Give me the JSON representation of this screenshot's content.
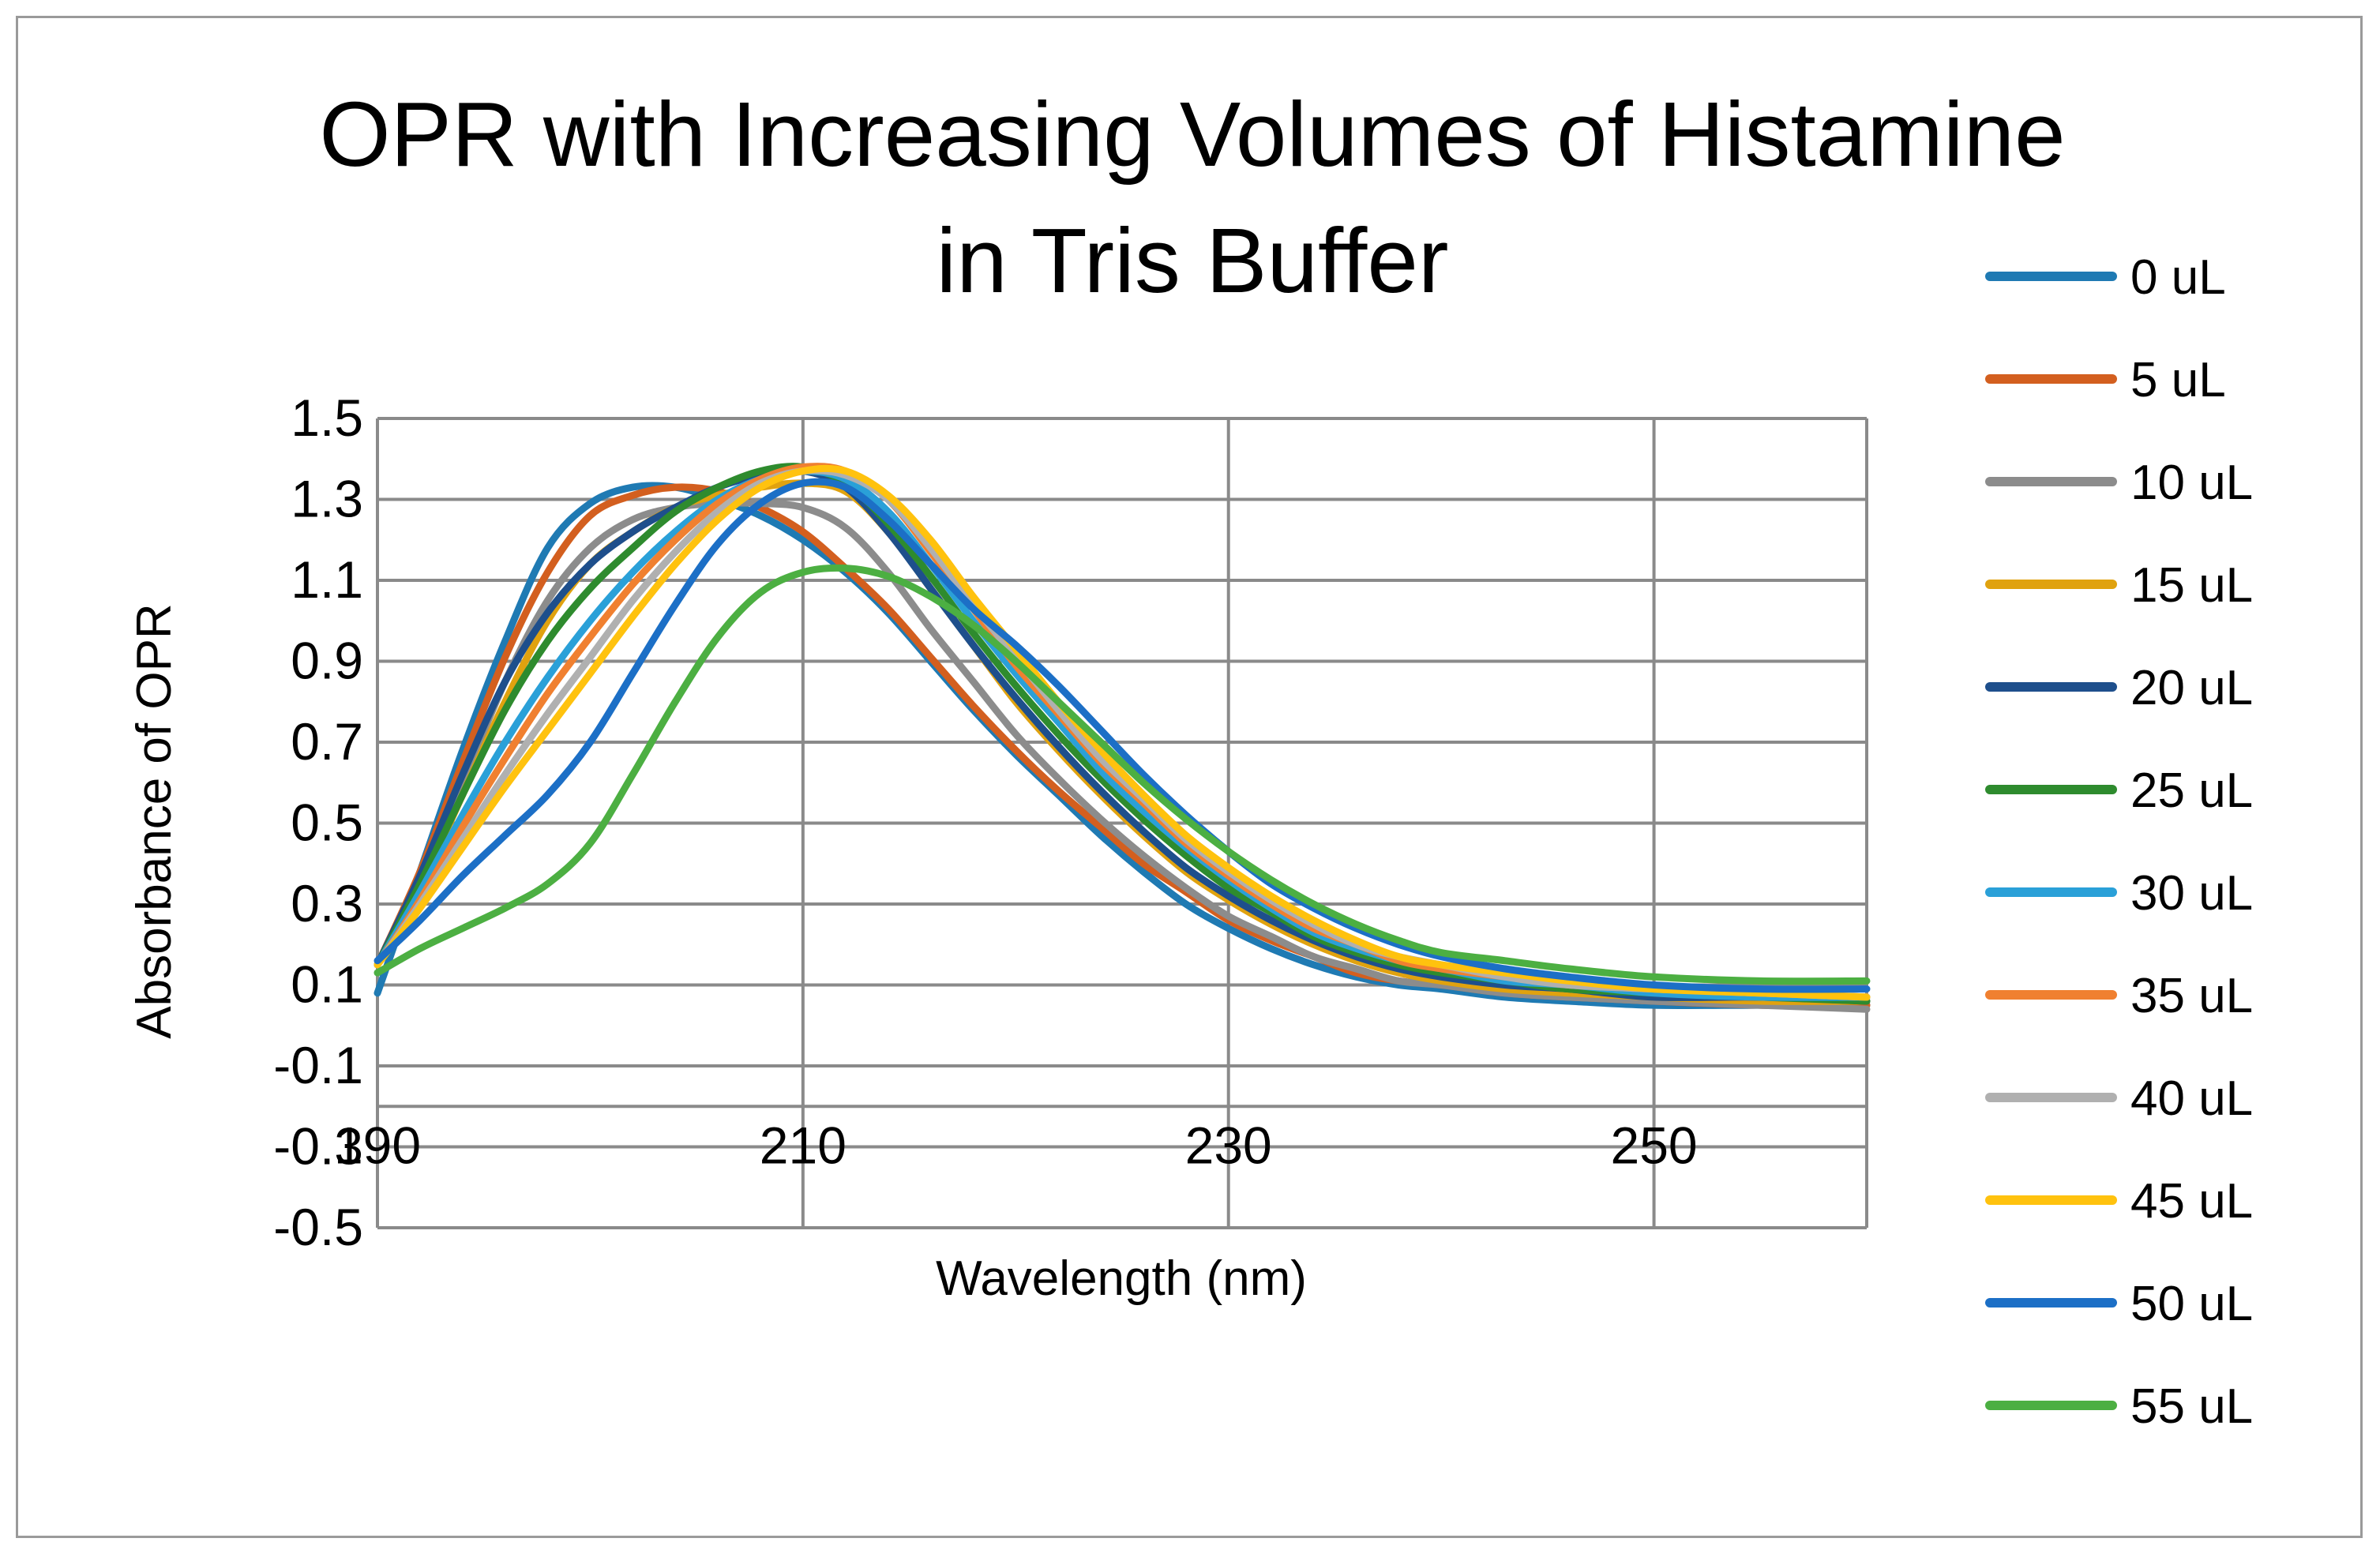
{
  "chart_data": {
    "type": "line",
    "title_lines": [
      "OPR with Increasing Volumes of Histamine",
      "in Tris Buffer"
    ],
    "xlabel": "Wavelength  (nm)",
    "ylabel": "Absorbance of OPR",
    "xlim": [
      190,
      260
    ],
    "ylim": [
      -0.5,
      1.5
    ],
    "x_ticks": [
      190,
      210,
      230,
      250
    ],
    "x_tick_labels": [
      "190",
      "210",
      "230",
      "250"
    ],
    "x_axis_crosses_y": -0.2,
    "y_ticks": [
      1.5,
      1.3,
      1.1,
      0.9,
      0.7,
      0.5,
      0.3,
      0.1,
      -0.1,
      -0.3,
      -0.5
    ],
    "y_tick_labels": [
      "1.5",
      "1.3",
      "1.1",
      "0.9",
      "0.7",
      "0.5",
      "0.3",
      "0.1",
      "-0.1",
      "-0.3",
      "-0.5"
    ],
    "grid": true,
    "legend_position": "right",
    "x": [
      190,
      192,
      194,
      196,
      198,
      200,
      202,
      204,
      206,
      208,
      210,
      212,
      214,
      216,
      218,
      220,
      222,
      224,
      226,
      228,
      230,
      232,
      234,
      236,
      238,
      240,
      243,
      246,
      250,
      255,
      260
    ],
    "series": [
      {
        "name": "0 uL",
        "color": "#1f7ab3",
        "values": [
          0.08,
          0.38,
          0.68,
          0.95,
          1.18,
          1.29,
          1.33,
          1.33,
          1.3,
          1.26,
          1.2,
          1.12,
          1.02,
          0.9,
          0.78,
          0.67,
          0.57,
          0.47,
          0.38,
          0.3,
          0.24,
          0.19,
          0.15,
          0.12,
          0.1,
          0.09,
          0.07,
          0.06,
          0.05,
          0.05,
          0.05
        ]
      },
      {
        "name": "5 uL",
        "color": "#d35f1f",
        "values": [
          0.15,
          0.38,
          0.65,
          0.91,
          1.12,
          1.26,
          1.31,
          1.33,
          1.32,
          1.28,
          1.22,
          1.13,
          1.03,
          0.91,
          0.79,
          0.68,
          0.58,
          0.49,
          0.4,
          0.33,
          0.26,
          0.21,
          0.17,
          0.13,
          0.11,
          0.1,
          0.08,
          0.07,
          0.06,
          0.05,
          0.05
        ]
      },
      {
        "name": "10 uL",
        "color": "#8c8c8c",
        "values": [
          0.15,
          0.36,
          0.6,
          0.85,
          1.05,
          1.18,
          1.25,
          1.28,
          1.29,
          1.29,
          1.28,
          1.23,
          1.12,
          0.98,
          0.85,
          0.72,
          0.61,
          0.51,
          0.42,
          0.34,
          0.27,
          0.22,
          0.17,
          0.14,
          0.11,
          0.1,
          0.08,
          0.07,
          0.06,
          0.05,
          0.04
        ]
      },
      {
        "name": "15 uL",
        "color": "#e0a20f",
        "values": [
          0.15,
          0.34,
          0.57,
          0.8,
          1.0,
          1.14,
          1.22,
          1.28,
          1.31,
          1.33,
          1.34,
          1.32,
          1.22,
          1.08,
          0.94,
          0.8,
          0.68,
          0.57,
          0.47,
          0.38,
          0.31,
          0.25,
          0.2,
          0.16,
          0.13,
          0.11,
          0.09,
          0.08,
          0.07,
          0.06,
          0.06
        ]
      },
      {
        "name": "20 uL",
        "color": "#1e4f8c",
        "values": [
          0.15,
          0.37,
          0.62,
          0.85,
          1.02,
          1.14,
          1.22,
          1.28,
          1.33,
          1.36,
          1.37,
          1.33,
          1.22,
          1.08,
          0.94,
          0.81,
          0.69,
          0.58,
          0.48,
          0.39,
          0.32,
          0.26,
          0.21,
          0.17,
          0.14,
          0.12,
          0.1,
          0.09,
          0.07,
          0.07,
          0.06
        ]
      },
      {
        "name": "25 uL",
        "color": "#2e8b2e",
        "values": [
          0.15,
          0.35,
          0.57,
          0.78,
          0.95,
          1.08,
          1.18,
          1.27,
          1.33,
          1.37,
          1.38,
          1.34,
          1.24,
          1.11,
          0.97,
          0.84,
          0.72,
          0.61,
          0.51,
          0.42,
          0.34,
          0.28,
          0.22,
          0.18,
          0.15,
          0.13,
          0.11,
          0.09,
          0.08,
          0.07,
          0.06
        ]
      },
      {
        "name": "30 uL",
        "color": "#2aa0d8",
        "values": [
          0.15,
          0.33,
          0.52,
          0.7,
          0.86,
          1.0,
          1.12,
          1.22,
          1.3,
          1.35,
          1.37,
          1.35,
          1.27,
          1.14,
          1.0,
          0.87,
          0.75,
          0.63,
          0.53,
          0.44,
          0.36,
          0.29,
          0.23,
          0.19,
          0.16,
          0.14,
          0.11,
          0.1,
          0.08,
          0.07,
          0.07
        ]
      },
      {
        "name": "35 uL",
        "color": "#f08030",
        "values": [
          0.15,
          0.31,
          0.49,
          0.66,
          0.82,
          0.96,
          1.09,
          1.2,
          1.29,
          1.35,
          1.38,
          1.37,
          1.3,
          1.17,
          1.03,
          0.89,
          0.77,
          0.65,
          0.55,
          0.45,
          0.37,
          0.3,
          0.24,
          0.2,
          0.16,
          0.14,
          0.12,
          0.1,
          0.09,
          0.08,
          0.07
        ]
      },
      {
        "name": "40  uL",
        "color": "#b0b0b0",
        "values": [
          0.15,
          0.3,
          0.46,
          0.62,
          0.77,
          0.91,
          1.05,
          1.17,
          1.27,
          1.34,
          1.37,
          1.36,
          1.3,
          1.18,
          1.04,
          0.91,
          0.78,
          0.66,
          0.56,
          0.46,
          0.38,
          0.31,
          0.25,
          0.2,
          0.17,
          0.15,
          0.12,
          0.1,
          0.09,
          0.08,
          0.07
        ]
      },
      {
        "name": "45 uL",
        "color": "#ffc20e",
        "values": [
          0.15,
          0.29,
          0.44,
          0.59,
          0.73,
          0.87,
          1.01,
          1.14,
          1.25,
          1.33,
          1.37,
          1.37,
          1.31,
          1.2,
          1.06,
          0.93,
          0.8,
          0.68,
          0.57,
          0.47,
          0.39,
          0.32,
          0.26,
          0.21,
          0.17,
          0.15,
          0.13,
          0.11,
          0.09,
          0.08,
          0.07
        ]
      },
      {
        "name": "50 uL",
        "color": "#1c6fc6",
        "values": [
          0.16,
          0.26,
          0.37,
          0.47,
          0.57,
          0.7,
          0.87,
          1.04,
          1.19,
          1.29,
          1.34,
          1.33,
          1.25,
          1.14,
          1.03,
          0.94,
          0.84,
          0.73,
          0.62,
          0.52,
          0.43,
          0.35,
          0.29,
          0.24,
          0.2,
          0.17,
          0.14,
          0.12,
          0.1,
          0.09,
          0.09
        ]
      },
      {
        "name": "55 uL",
        "color": "#4caf42",
        "values": [
          0.13,
          0.19,
          0.24,
          0.29,
          0.35,
          0.45,
          0.62,
          0.8,
          0.96,
          1.07,
          1.12,
          1.13,
          1.11,
          1.06,
          0.99,
          0.9,
          0.8,
          0.7,
          0.6,
          0.51,
          0.43,
          0.36,
          0.3,
          0.25,
          0.21,
          0.18,
          0.16,
          0.14,
          0.12,
          0.11,
          0.11
        ]
      }
    ]
  }
}
